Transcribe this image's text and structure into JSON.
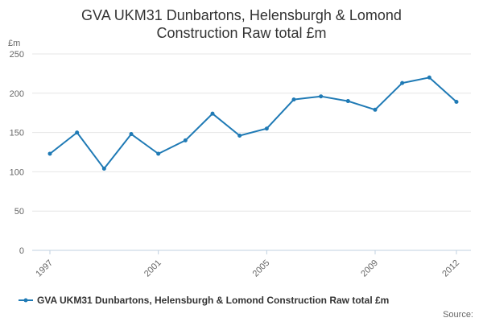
{
  "chart_data": {
    "type": "line",
    "title": "GVA UKM31 Dunbartons, Helensburgh & Lomond Construction Raw total £m",
    "title_lines": [
      "GVA UKM31 Dunbartons, Helensburgh & Lomond",
      "Construction Raw total £m"
    ],
    "ylabel": "£m",
    "ylim": [
      0,
      250
    ],
    "yticks": [
      0,
      50,
      100,
      150,
      200,
      250
    ],
    "xlim": [
      1997,
      2012
    ],
    "xticks": [
      1997,
      2001,
      2005,
      2009,
      2012
    ],
    "grid": true,
    "legend_position": "bottom",
    "series": [
      {
        "name": "GVA UKM31 Dunbartons, Helensburgh & Lomond Construction Raw total £m",
        "color": "#1f7ab5",
        "x": [
          1997,
          1998,
          1999,
          2000,
          2001,
          2002,
          2003,
          2004,
          2005,
          2006,
          2007,
          2008,
          2009,
          2010,
          2011,
          2012
        ],
        "values": [
          123,
          150,
          104,
          148,
          123,
          140,
          174,
          146,
          155,
          192,
          196,
          190,
          179,
          213,
          220,
          189
        ]
      }
    ]
  },
  "source_label": "Source:"
}
